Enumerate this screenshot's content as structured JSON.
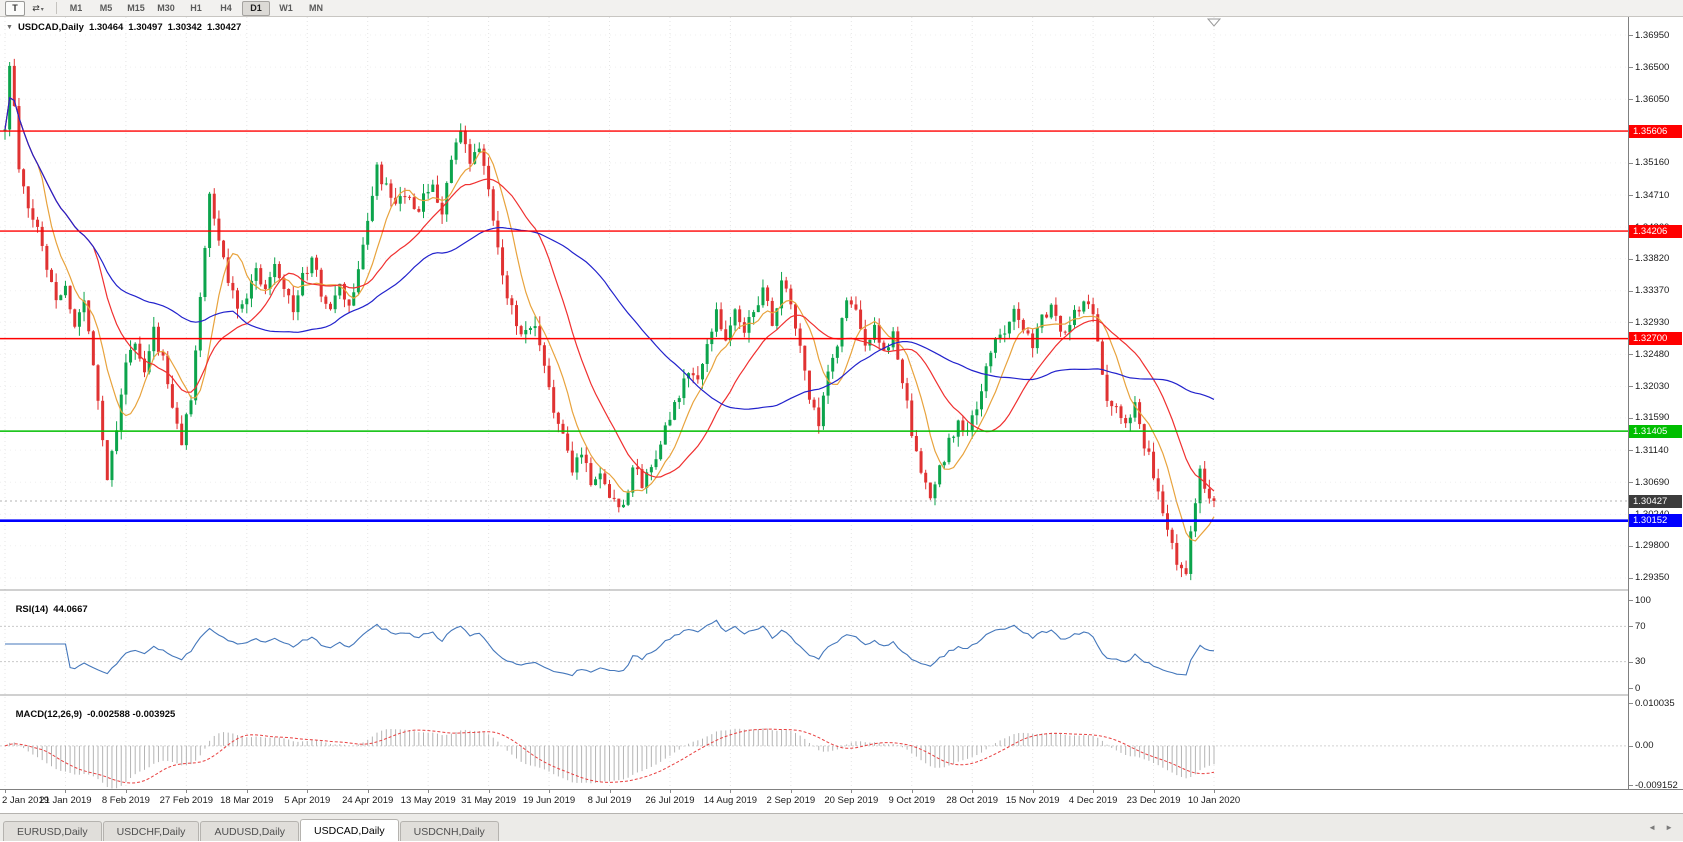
{
  "toolbar": {
    "text_tool_label": "T",
    "tools_icon": "⇄",
    "dropdown_icon": "▾",
    "timeframes": [
      "M1",
      "M5",
      "M15",
      "M30",
      "H1",
      "H4",
      "D1",
      "W1",
      "MN"
    ],
    "active_timeframe": "D1"
  },
  "chart": {
    "collapse_icon": "▼",
    "title": "USDCAD,Daily",
    "open": "1.30464",
    "high": "1.30497",
    "low": "1.30342",
    "close": "1.30427"
  },
  "tabs": {
    "items": [
      "EURUSD,Daily",
      "USDCHF,Daily",
      "AUDUSD,Daily",
      "USDCAD,Daily",
      "USDCNH,Daily"
    ],
    "active": "USDCAD,Daily",
    "scroll_left": "◄",
    "scroll_right": "►"
  },
  "chart_data": {
    "type": "candlestick",
    "symbol": "USDCAD",
    "timeframe": "Daily",
    "last_bar": {
      "open": 1.30464,
      "high": 1.30497,
      "low": 1.30342,
      "close": 1.30427
    },
    "current_price_label": {
      "value": "1.30427",
      "price": 1.30427,
      "bg": "#3c3c3c"
    },
    "candle_count": 261,
    "bars_per_label": 13,
    "date_labels": [
      "2 Jan 2019",
      "21 Jan 2019",
      "8 Feb 2019",
      "27 Feb 2019",
      "18 Mar 2019",
      "5 Apr 2019",
      "24 Apr 2019",
      "13 May 2019",
      "31 May 2019",
      "19 Jun 2019",
      "8 Jul 2019",
      "26 Jul 2019",
      "14 Aug 2019",
      "2 Sep 2019",
      "20 Sep 2019",
      "9 Oct 2019",
      "28 Oct 2019",
      "15 Nov 2019",
      "4 Dec 2019",
      "23 Dec 2019",
      "10 Jan 2020"
    ],
    "price_axis_ticks": [
      1.3695,
      1.365,
      1.3605,
      1.3561,
      1.3516,
      1.3471,
      1.3426,
      1.3382,
      1.3337,
      1.3293,
      1.3248,
      1.3203,
      1.3159,
      1.3114,
      1.3069,
      1.3024,
      1.298,
      1.2935
    ],
    "hlines": [
      {
        "price": 1.35606,
        "label": "1.35606",
        "color": "#FF0000",
        "width": 1.4
      },
      {
        "price": 1.34206,
        "label": "1.34206",
        "color": "#FF0000",
        "width": 1.4
      },
      {
        "price": 1.327,
        "label": "1.32700",
        "color": "#FF0000",
        "width": 1.6
      },
      {
        "price": 1.31405,
        "label": "1.31405",
        "color": "#00BE00",
        "width": 1.6
      },
      {
        "price": 1.30152,
        "label": "1.30152",
        "color": "#0000FF",
        "width": 2.6
      }
    ],
    "up_color": "#0CA44C",
    "down_color": "#E03232",
    "seed": 11,
    "noise": {
      "close": 0.0009,
      "wick": 0.0014
    },
    "price_path": [
      [
        0,
        1.356
      ],
      [
        1,
        1.3655
      ],
      [
        2,
        1.359
      ],
      [
        3,
        1.3505
      ],
      [
        5,
        1.345
      ],
      [
        7,
        1.3425
      ],
      [
        9,
        1.337
      ],
      [
        11,
        1.333
      ],
      [
        13,
        1.334
      ],
      [
        15,
        1.329
      ],
      [
        17,
        1.332
      ],
      [
        19,
        1.324
      ],
      [
        21,
        1.313
      ],
      [
        22,
        1.3075
      ],
      [
        24,
        1.315
      ],
      [
        26,
        1.324
      ],
      [
        28,
        1.326
      ],
      [
        30,
        1.322
      ],
      [
        32,
        1.328
      ],
      [
        34,
        1.324
      ],
      [
        36,
        1.317
      ],
      [
        38,
        1.3125
      ],
      [
        40,
        1.319
      ],
      [
        42,
        1.333
      ],
      [
        44,
        1.3465
      ],
      [
        46,
        1.341
      ],
      [
        48,
        1.335
      ],
      [
        50,
        1.332
      ],
      [
        52,
        1.333
      ],
      [
        54,
        1.3365
      ],
      [
        56,
        1.334
      ],
      [
        58,
        1.338
      ],
      [
        60,
        1.3345
      ],
      [
        62,
        1.331
      ],
      [
        64,
        1.3355
      ],
      [
        66,
        1.338
      ],
      [
        68,
        1.3335
      ],
      [
        70,
        1.331
      ],
      [
        72,
        1.334
      ],
      [
        74,
        1.3315
      ],
      [
        76,
        1.336
      ],
      [
        78,
        1.344
      ],
      [
        80,
        1.3505
      ],
      [
        82,
        1.348
      ],
      [
        84,
        1.345
      ],
      [
        86,
        1.3475
      ],
      [
        88,
        1.3445
      ],
      [
        90,
        1.3465
      ],
      [
        92,
        1.348
      ],
      [
        94,
        1.345
      ],
      [
        96,
        1.352
      ],
      [
        98,
        1.3555
      ],
      [
        100,
        1.3515
      ],
      [
        102,
        1.3535
      ],
      [
        104,
        1.348
      ],
      [
        106,
        1.339
      ],
      [
        108,
        1.3335
      ],
      [
        110,
        1.329
      ],
      [
        112,
        1.3275
      ],
      [
        114,
        1.3285
      ],
      [
        116,
        1.3225
      ],
      [
        118,
        1.3175
      ],
      [
        120,
        1.313
      ],
      [
        122,
        1.3085
      ],
      [
        124,
        1.3115
      ],
      [
        126,
        1.307
      ],
      [
        128,
        1.3082
      ],
      [
        130,
        1.3052
      ],
      [
        132,
        1.304
      ],
      [
        133,
        1.3036
      ],
      [
        135,
        1.309
      ],
      [
        137,
        1.3068
      ],
      [
        139,
        1.3088
      ],
      [
        141,
        1.313
      ],
      [
        143,
        1.3155
      ],
      [
        145,
        1.319
      ],
      [
        147,
        1.3225
      ],
      [
        149,
        1.321
      ],
      [
        151,
        1.3255
      ],
      [
        153,
        1.3315
      ],
      [
        155,
        1.3265
      ],
      [
        157,
        1.331
      ],
      [
        159,
        1.3275
      ],
      [
        161,
        1.3315
      ],
      [
        163,
        1.3335
      ],
      [
        165,
        1.3295
      ],
      [
        167,
        1.3345
      ],
      [
        169,
        1.332
      ],
      [
        171,
        1.3255
      ],
      [
        173,
        1.3185
      ],
      [
        175,
        1.315
      ],
      [
        177,
        1.3215
      ],
      [
        179,
        1.3265
      ],
      [
        181,
        1.3325
      ],
      [
        183,
        1.3305
      ],
      [
        185,
        1.3255
      ],
      [
        187,
        1.3295
      ],
      [
        189,
        1.3245
      ],
      [
        191,
        1.3275
      ],
      [
        193,
        1.3215
      ],
      [
        195,
        1.3135
      ],
      [
        197,
        1.3075
      ],
      [
        199,
        1.3048
      ],
      [
        201,
        1.3085
      ],
      [
        203,
        1.3125
      ],
      [
        205,
        1.3155
      ],
      [
        207,
        1.3135
      ],
      [
        209,
        1.3175
      ],
      [
        211,
        1.3225
      ],
      [
        213,
        1.3265
      ],
      [
        215,
        1.3285
      ],
      [
        217,
        1.3315
      ],
      [
        219,
        1.3285
      ],
      [
        221,
        1.3265
      ],
      [
        223,
        1.3295
      ],
      [
        225,
        1.3315
      ],
      [
        227,
        1.3275
      ],
      [
        229,
        1.3295
      ],
      [
        231,
        1.3315
      ],
      [
        233,
        1.3325
      ],
      [
        235,
        1.327
      ],
      [
        237,
        1.3185
      ],
      [
        239,
        1.3175
      ],
      [
        241,
        1.316
      ],
      [
        243,
        1.3175
      ],
      [
        245,
        1.3125
      ],
      [
        247,
        1.3082
      ],
      [
        249,
        1.302
      ],
      [
        251,
        1.2982
      ],
      [
        252,
        1.2962
      ],
      [
        254,
        1.2948
      ],
      [
        255,
        1.2995
      ],
      [
        256,
        1.3045
      ],
      [
        257,
        1.3095
      ],
      [
        258,
        1.3065
      ],
      [
        259,
        1.3052
      ],
      [
        260,
        1.30427
      ]
    ],
    "moving_averages": [
      {
        "period": 8,
        "color": "#E8A33D"
      },
      {
        "period": 20,
        "color": "#F03030"
      },
      {
        "period": 50,
        "color": "#2222CC"
      }
    ],
    "rsi": {
      "period": 14,
      "label": "RSI(14)",
      "value": "44.0667",
      "levels": [
        100,
        70,
        30,
        0
      ],
      "color": "#4477BB"
    },
    "macd": {
      "label": "MACD(12,26,9)",
      "value": "-0.002588 -0.003925",
      "fast": 12,
      "slow": 26,
      "signal": 9,
      "axis_ticks": [
        "0.010035",
        "0.00",
        "-0.009152"
      ],
      "axis_values": [
        0.010035,
        0,
        -0.009152
      ],
      "histogram_color": "#B4B4B4",
      "signal_color": "#E84040"
    }
  }
}
